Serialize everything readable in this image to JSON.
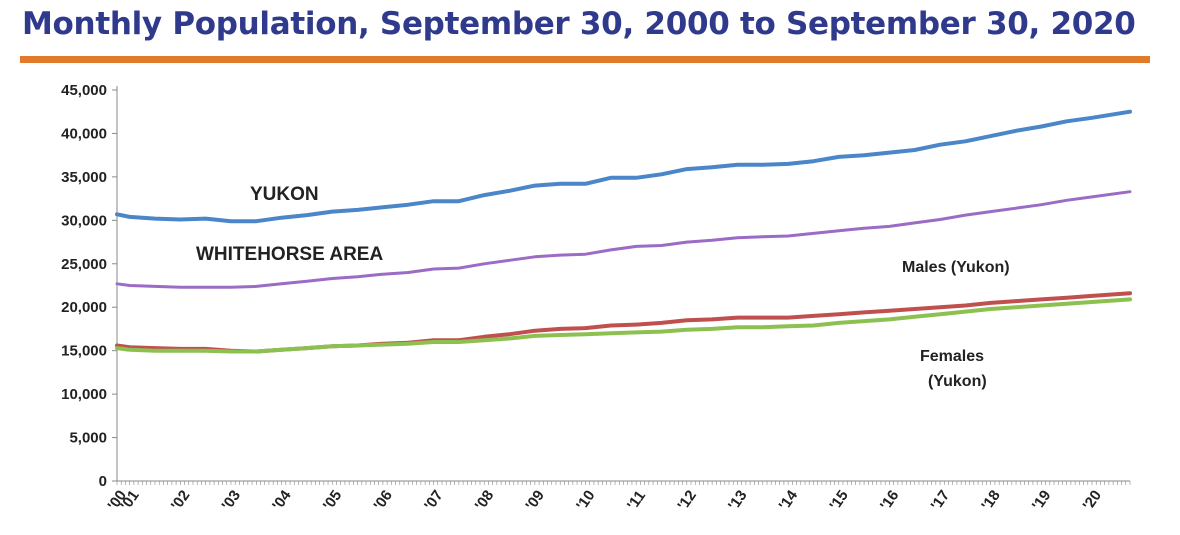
{
  "title": "Monthly Population, September 30, 2000 to September 30, 2020",
  "colors": {
    "title": "#2f3a8c",
    "rule": "#e27a2b",
    "yukon": "#4a86c8",
    "whitehorse": "#9b6bc6",
    "males": "#c0504d",
    "females": "#8cc152"
  },
  "chart_data": {
    "type": "line",
    "title": "",
    "xlabel": "",
    "ylabel": "",
    "ylim": [
      0,
      45000
    ],
    "y_ticks": [
      "0",
      "5,000",
      "10,000",
      "15,000",
      "20,000",
      "25,000",
      "30,000",
      "35,000",
      "40,000",
      "45,000"
    ],
    "y_tick_values": [
      0,
      5000,
      10000,
      15000,
      20000,
      25000,
      30000,
      35000,
      40000,
      45000
    ],
    "x_tick_labels": [
      "'00",
      "'01",
      "'02",
      "'03",
      "'04",
      "'05",
      "'06",
      "'07",
      "'08",
      "'09",
      "'10",
      "'11",
      "'12",
      "'13",
      "'14",
      "'15",
      "'16",
      "'17",
      "'18",
      "'19",
      "'20"
    ],
    "x_tick_years": [
      2000.75,
      2001,
      2002,
      2003,
      2004,
      2005,
      2006,
      2007,
      2008,
      2009,
      2010,
      2011,
      2012,
      2013,
      2014,
      2015,
      2016,
      2017,
      2018,
      2019,
      2020
    ],
    "x_range": [
      2000.75,
      2020.75
    ],
    "grid": false,
    "legend": "none",
    "series": [
      {
        "name": "YUKON",
        "x": [
          2000.75,
          2001,
          2001.5,
          2002,
          2002.5,
          2003,
          2003.5,
          2004,
          2004.5,
          2005,
          2005.5,
          2006,
          2006.5,
          2007,
          2007.5,
          2008,
          2008.5,
          2009,
          2009.5,
          2010,
          2010.5,
          2011,
          2011.5,
          2012,
          2012.5,
          2013,
          2013.5,
          2014,
          2014.5,
          2015,
          2015.5,
          2016,
          2016.5,
          2017,
          2017.5,
          2018,
          2018.5,
          2019,
          2019.5,
          2020,
          2020.75
        ],
        "values": [
          30700,
          30400,
          30200,
          30100,
          30200,
          29900,
          29900,
          30300,
          30600,
          31000,
          31200,
          31500,
          31800,
          32200,
          32200,
          32900,
          33400,
          34000,
          34200,
          34200,
          34900,
          34900,
          35300,
          35900,
          36100,
          36400,
          36400,
          36500,
          36800,
          37300,
          37500,
          37800,
          38100,
          38700,
          39100,
          39700,
          40300,
          40800,
          41400,
          41800,
          42500
        ]
      },
      {
        "name": "WHITEHORSE AREA",
        "x": [
          2000.75,
          2001,
          2001.5,
          2002,
          2002.5,
          2003,
          2003.5,
          2004,
          2004.5,
          2005,
          2005.5,
          2006,
          2006.5,
          2007,
          2007.5,
          2008,
          2008.5,
          2009,
          2009.5,
          2010,
          2010.5,
          2011,
          2011.5,
          2012,
          2012.5,
          2013,
          2013.5,
          2014,
          2014.5,
          2015,
          2015.5,
          2016,
          2016.5,
          2017,
          2017.5,
          2018,
          2018.5,
          2019,
          2019.5,
          2020,
          2020.75
        ],
        "values": [
          22700,
          22500,
          22400,
          22300,
          22300,
          22300,
          22400,
          22700,
          23000,
          23300,
          23500,
          23800,
          24000,
          24400,
          24500,
          25000,
          25400,
          25800,
          26000,
          26100,
          26600,
          27000,
          27100,
          27500,
          27700,
          28000,
          28100,
          28200,
          28500,
          28800,
          29100,
          29300,
          29700,
          30100,
          30600,
          31000,
          31400,
          31800,
          32300,
          32700,
          33300
        ]
      },
      {
        "name": "Males (Yukon)",
        "x": [
          2000.75,
          2001,
          2001.5,
          2002,
          2002.5,
          2003,
          2003.5,
          2004,
          2004.5,
          2005,
          2005.5,
          2006,
          2006.5,
          2007,
          2007.5,
          2008,
          2008.5,
          2009,
          2009.5,
          2010,
          2010.5,
          2011,
          2011.5,
          2012,
          2012.5,
          2013,
          2013.5,
          2014,
          2014.5,
          2015,
          2015.5,
          2016,
          2016.5,
          2017,
          2017.5,
          2018,
          2018.5,
          2019,
          2019.5,
          2020,
          2020.75
        ],
        "values": [
          15600,
          15400,
          15300,
          15200,
          15200,
          15000,
          14900,
          15100,
          15300,
          15500,
          15600,
          15800,
          15900,
          16200,
          16200,
          16600,
          16900,
          17300,
          17500,
          17600,
          17900,
          18000,
          18200,
          18500,
          18600,
          18800,
          18800,
          18800,
          19000,
          19200,
          19400,
          19600,
          19800,
          20000,
          20200,
          20500,
          20700,
          20900,
          21100,
          21300,
          21600
        ]
      },
      {
        "name": "Females (Yukon)",
        "x": [
          2000.75,
          2001,
          2001.5,
          2002,
          2002.5,
          2003,
          2003.5,
          2004,
          2004.5,
          2005,
          2005.5,
          2006,
          2006.5,
          2007,
          2007.5,
          2008,
          2008.5,
          2009,
          2009.5,
          2010,
          2010.5,
          2011,
          2011.5,
          2012,
          2012.5,
          2013,
          2013.5,
          2014,
          2014.5,
          2015,
          2015.5,
          2016,
          2016.5,
          2017,
          2017.5,
          2018,
          2018.5,
          2019,
          2019.5,
          2020,
          2020.75
        ],
        "values": [
          15300,
          15100,
          15000,
          15000,
          15000,
          14900,
          14900,
          15100,
          15300,
          15500,
          15600,
          15700,
          15800,
          16000,
          16000,
          16200,
          16400,
          16700,
          16800,
          16900,
          17000,
          17100,
          17200,
          17400,
          17500,
          17700,
          17700,
          17800,
          17900,
          18200,
          18400,
          18600,
          18900,
          19200,
          19500,
          19800,
          20000,
          20200,
          20400,
          20600,
          20900
        ]
      }
    ],
    "annotations": [
      {
        "text": "YUKON",
        "series": 0
      },
      {
        "text": "WHITEHORSE AREA",
        "series": 1
      },
      {
        "text": "Males (Yukon)",
        "series": 2
      },
      {
        "text": "Females",
        "series": 3
      },
      {
        "text": "(Yukon)",
        "series": 3
      }
    ]
  }
}
